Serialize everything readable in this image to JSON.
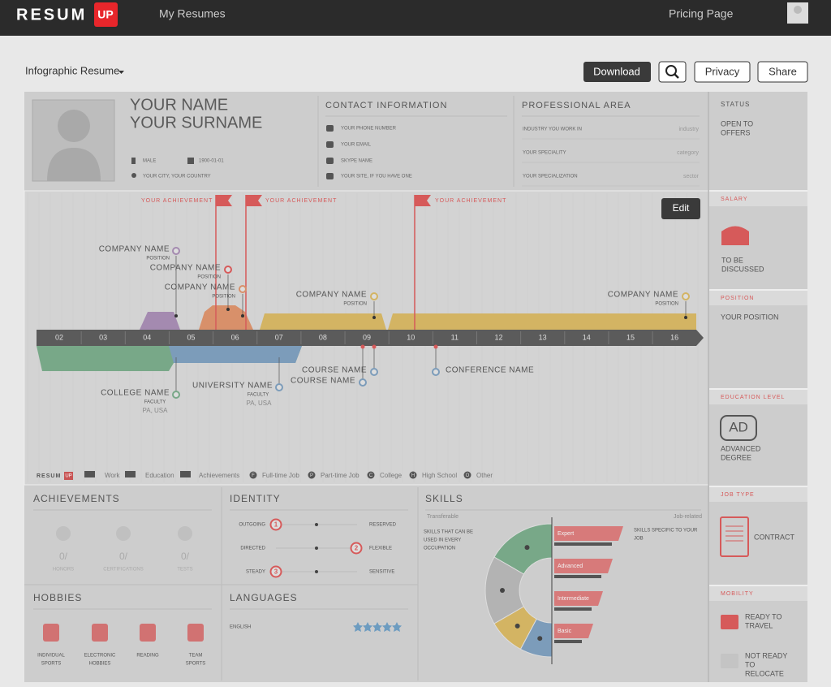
{
  "nav": {
    "logo": "RESUM",
    "logo_badge": "UP",
    "links": [
      "My Resumes",
      "Pricing Page"
    ]
  },
  "toolbar": {
    "template": "Infographic Resume",
    "buttons": [
      "Download",
      "Privacy",
      "Share"
    ]
  },
  "resume": {
    "name": "YOUR NAME",
    "surname": "YOUR SURNAME",
    "gender": "MALE",
    "birth_date": "1900-01-01",
    "location": "YOUR CITY, YOUR COUNTRY",
    "contact": {
      "title": "CONTACT INFORMATION",
      "items": [
        "YOUR PHONE NUMBER",
        "YOUR EMAIL",
        "SKYPE NAME",
        "YOUR SITE, IF YOU HAVE ONE"
      ]
    },
    "professional": {
      "title": "PROFESSIONAL AREA",
      "rows": [
        [
          "INDUSTRY YOU WORK IN",
          "industry"
        ],
        [
          "YOUR SPECIALITY",
          "category"
        ],
        [
          "YOUR SPECIALIZATION",
          "sector"
        ]
      ]
    },
    "timeline": {
      "edit": "Edit",
      "years": [
        "02",
        "03",
        "04",
        "05",
        "06",
        "07",
        "08",
        "09",
        "10",
        "11",
        "12",
        "13",
        "14",
        "15",
        "16"
      ],
      "achievements": [
        "YOUR ACHIEVEMENT",
        "YOUR ACHIEVEMENT",
        "YOUR ACHIEVEMENT"
      ],
      "work": [
        {
          "name": "COMPANY NAME",
          "role": "POSITION"
        },
        {
          "name": "COMPANY NAME",
          "role": "POSITION"
        },
        {
          "name": "COMPANY NAME",
          "role": "POSITION"
        },
        {
          "name": "COMPANY NAME",
          "role": "POSITION"
        },
        {
          "name": "COMPANY NAME",
          "role": "POSITION"
        }
      ],
      "education": [
        {
          "name": "COLLEGE NAME",
          "role": "FACULTY",
          "place": "PA, USA"
        },
        {
          "name": "UNIVERSITY NAME",
          "role": "FACULTY",
          "place": "PA, USA"
        }
      ],
      "courses": [
        "COURSE NAME",
        "COURSE NAME",
        "CONFERENCE NAME"
      ],
      "legend": {
        "logo": "RESUM",
        "logo_badge": "UP",
        "items": [
          {
            "label": "Work"
          },
          {
            "label": "Education"
          },
          {
            "label": "Achievements"
          },
          {
            "icon": "F",
            "label": "Full-time Job"
          },
          {
            "icon": "P",
            "label": "Part-time Job"
          },
          {
            "icon": "C",
            "label": "College"
          },
          {
            "icon": "H",
            "label": "High School"
          },
          {
            "icon": "O",
            "label": "Other"
          }
        ]
      }
    },
    "achievements": {
      "title": "ACHIEVEMENTS",
      "items": [
        {
          "count": "0/",
          "label": "HONORS"
        },
        {
          "count": "0/",
          "label": "CERTIFICATIONS"
        },
        {
          "count": "0/",
          "label": "TESTS"
        }
      ]
    },
    "identity": {
      "title": "IDENTITY",
      "rows": [
        [
          "OUTGOING",
          "1",
          "RESERVED"
        ],
        [
          "DIRECTED",
          "2",
          "FLEXIBLE"
        ],
        [
          "STEADY",
          "3",
          "SENSITIVE"
        ]
      ]
    },
    "skills": {
      "title": "SKILLS",
      "left_header": "Transferable",
      "right_header": "Job-related",
      "left_note": [
        "SKILLS THAT CAN BE",
        "USED IN EVERY",
        "OCCUPATION"
      ],
      "right_note": [
        "SKILLS SPECIFIC TO YOUR",
        "JOB"
      ],
      "levels": [
        "Expert",
        "Advanced",
        "Intermediate",
        "Basic"
      ]
    },
    "hobbies": {
      "title": "HOBBIES",
      "items": [
        [
          "INDIVIDUAL",
          "SPORTS"
        ],
        [
          "ELECTRONIC",
          "HOBBIES"
        ],
        [
          "READING"
        ],
        [
          "TEAM",
          "SPORTS"
        ]
      ]
    },
    "languages": {
      "title": "LANGUAGES",
      "items": [
        "ENGLISH"
      ]
    },
    "sidebar": {
      "status": {
        "title": "STATUS",
        "lines": [
          "OPEN TO",
          "OFFERS"
        ]
      },
      "salary": {
        "title": "SALARY",
        "lines": [
          "TO BE",
          "DISCUSSED"
        ]
      },
      "position": {
        "title": "POSITION",
        "lines": [
          "YOUR POSITION"
        ]
      },
      "education": {
        "title": "EDUCATION LEVEL",
        "badge": "AD",
        "lines": [
          "ADVANCED",
          "DEGREE"
        ]
      },
      "job_type": {
        "title": "JOB TYPE",
        "lines": [
          "CONTRACT"
        ]
      },
      "mobility": {
        "title": "MOBILITY",
        "lines": [
          "READY TO",
          "TRAVEL"
        ],
        "lines2": [
          "NOT READY",
          "TO",
          "RELOCATE"
        ]
      }
    }
  }
}
